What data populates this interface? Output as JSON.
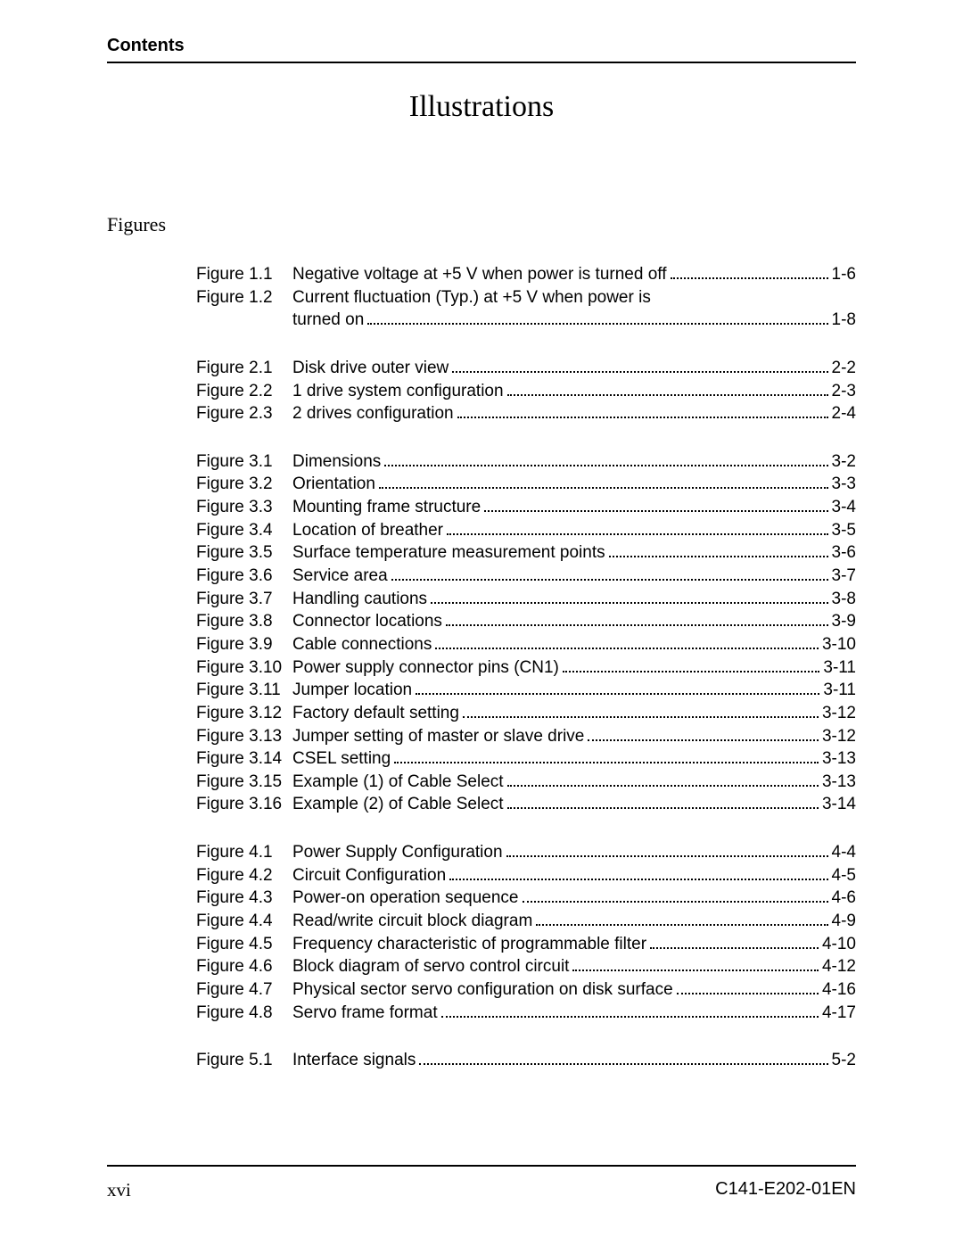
{
  "header": {
    "label": "Contents"
  },
  "title": "Illustrations",
  "section_label": "Figures",
  "footer": {
    "page_left": "xvi",
    "doc_id": "C141-E202-01EN"
  },
  "groups": [
    {
      "entries": [
        {
          "label": "Figure 1.1",
          "title": "Negative voltage at +5 V when power is turned off",
          "page": "1-6"
        },
        {
          "label": "Figure 1.2",
          "title": "Current fluctuation (Typ.) at +5 V when power is",
          "cont_title": "turned on",
          "page": "1-8"
        }
      ]
    },
    {
      "entries": [
        {
          "label": "Figure 2.1",
          "title": "Disk drive outer view",
          "page": "2-2"
        },
        {
          "label": "Figure 2.2",
          "title": "1 drive system configuration",
          "page": "2-3"
        },
        {
          "label": "Figure 2.3",
          "title": "2 drives configuration",
          "page": "2-4"
        }
      ]
    },
    {
      "entries": [
        {
          "label": "Figure 3.1",
          "title": "Dimensions",
          "page": "3-2"
        },
        {
          "label": "Figure 3.2",
          "title": "Orientation",
          "page": "3-3"
        },
        {
          "label": "Figure 3.3",
          "title": "Mounting frame structure",
          "page": "3-4"
        },
        {
          "label": "Figure 3.4",
          "title": "Location of breather",
          "page": "3-5"
        },
        {
          "label": "Figure 3.5",
          "title": "Surface temperature measurement points",
          "page": "3-6"
        },
        {
          "label": "Figure 3.6",
          "title": "Service area",
          "page": "3-7"
        },
        {
          "label": "Figure 3.7",
          "title": "Handling cautions",
          "page": "3-8"
        },
        {
          "label": "Figure 3.8",
          "title": "Connector locations",
          "page": "3-9"
        },
        {
          "label": "Figure 3.9",
          "title": "Cable connections",
          "page": "3-10"
        },
        {
          "label": "Figure 3.10",
          "title": "Power supply connector pins (CN1)",
          "page": "3-11"
        },
        {
          "label": "Figure 3.11",
          "title": "Jumper location",
          "page": "3-11"
        },
        {
          "label": "Figure 3.12",
          "title": "Factory default setting",
          "page": "3-12"
        },
        {
          "label": "Figure 3.13",
          "title": "Jumper setting of master or slave drive",
          "page": "3-12"
        },
        {
          "label": "Figure 3.14",
          "title": "CSEL setting",
          "page": "3-13"
        },
        {
          "label": "Figure 3.15",
          "title": "Example (1) of Cable Select",
          "page": "3-13"
        },
        {
          "label": "Figure 3.16",
          "title": "Example (2) of Cable Select",
          "page": "3-14"
        }
      ]
    },
    {
      "entries": [
        {
          "label": "Figure 4.1",
          "title": "Power Supply Configuration",
          "page": "4-4"
        },
        {
          "label": "Figure 4.2",
          "title": "Circuit Configuration",
          "page": "4-5"
        },
        {
          "label": "Figure 4.3",
          "title": "Power-on operation sequence",
          "page": "4-6"
        },
        {
          "label": "Figure 4.4",
          "title": "Read/write circuit block diagram",
          "page": "4-9"
        },
        {
          "label": "Figure 4.5",
          "title": "Frequency characteristic of programmable filter",
          "page": "4-10"
        },
        {
          "label": "Figure 4.6",
          "title": "Block diagram of servo control circuit",
          "page": "4-12"
        },
        {
          "label": "Figure 4.7",
          "title": "Physical sector servo configuration on disk surface",
          "page": "4-16"
        },
        {
          "label": "Figure 4.8",
          "title": "Servo frame format",
          "page": "4-17"
        }
      ]
    },
    {
      "entries": [
        {
          "label": "Figure 5.1",
          "title": "Interface signals",
          "page": "5-2"
        }
      ]
    }
  ]
}
